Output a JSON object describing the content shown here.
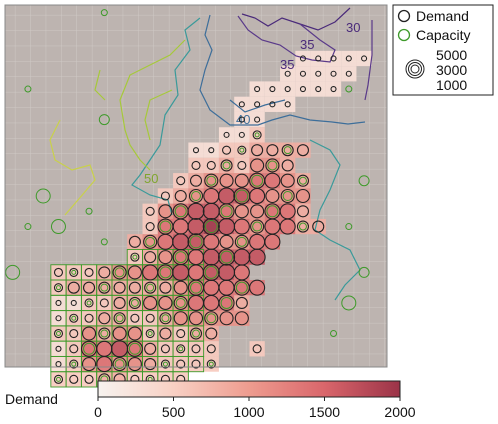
{
  "chart_data": {
    "type": "heatmap",
    "title": "",
    "legend": {
      "position": "top-right",
      "entries": [
        {
          "label": "Demand",
          "color": "#222222"
        },
        {
          "label": "Capacity",
          "color": "#3e9a2a"
        }
      ],
      "size_values": [
        "5000",
        "3000",
        "1000"
      ]
    },
    "colorbar": {
      "title": "Demand",
      "min": 0,
      "max": 2000,
      "ticks": [
        "0",
        "500",
        "1000",
        "1500",
        "2000"
      ],
      "colors": [
        "#f7f3ef",
        "#f8d0c4",
        "#ee9c8f",
        "#d9666b",
        "#9b3348"
      ]
    },
    "contour_labels": [
      "30",
      "35",
      "35",
      "40",
      "50"
    ],
    "grid_rows": [
      ".........................",
      ".........................",
      ".........................",
      "...................11111.",
      "..................11111..",
      "................111111...",
      "...............1111......",
      "...............11.......",
      "..............112.......",
      "............11223333....",
      "............2232443.....",
      "...........234445543....",
      "..........2345665444.....",
      ".........24566544553.....",
      ".........255676545533....",
      "........3456654455.......",
      "........234556666........",
      "...2223445565665........",
      "...23333333455555.......",
      "...1122334445553........",
      "...1223322344444........",
      "...22434423233..........",
      "...12556532222..2.......",
      "...12454432222..........",
      "...222332222............"
    ],
    "circle_radius_scale": [
      0,
      2.5,
      4,
      5.5,
      6.5,
      7.5,
      8
    ],
    "extra_capacity_points": [
      [
        1,
        5
      ],
      [
        6,
        7
      ],
      [
        2,
        12
      ],
      [
        5,
        13
      ],
      [
        1,
        14
      ],
      [
        3,
        14
      ],
      [
        6,
        15
      ],
      [
        0,
        17
      ],
      [
        22,
        5
      ],
      [
        23,
        11
      ],
      [
        22,
        14
      ],
      [
        23,
        17
      ],
      [
        22,
        19
      ],
      [
        21,
        21
      ],
      [
        6,
        0
      ]
    ]
  }
}
